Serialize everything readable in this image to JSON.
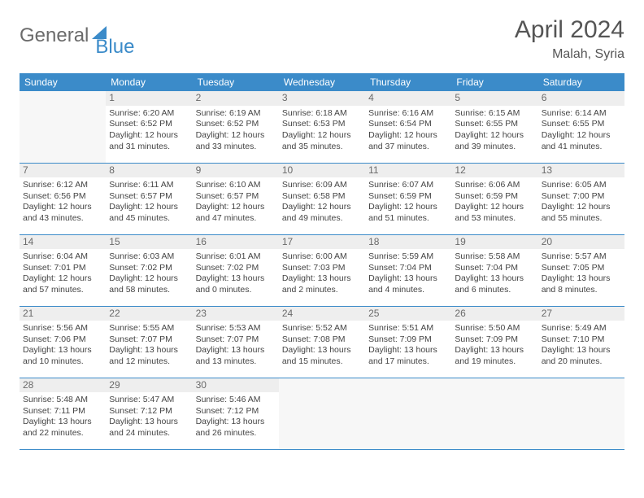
{
  "brand": {
    "word1": "General",
    "word2": "Blue"
  },
  "title": {
    "month": "April 2024",
    "location": "Malah, Syria"
  },
  "colors": {
    "header_bg": "#3b8bc9",
    "header_text": "#ffffff",
    "daynum_bg": "#eeeeee",
    "rule": "#3b8bc9",
    "body_text": "#444444"
  },
  "weekdays": [
    "Sunday",
    "Monday",
    "Tuesday",
    "Wednesday",
    "Thursday",
    "Friday",
    "Saturday"
  ],
  "weeks": [
    [
      null,
      {
        "n": "1",
        "sr": "6:20 AM",
        "ss": "6:52 PM",
        "dl": "12 hours and 31 minutes."
      },
      {
        "n": "2",
        "sr": "6:19 AM",
        "ss": "6:52 PM",
        "dl": "12 hours and 33 minutes."
      },
      {
        "n": "3",
        "sr": "6:18 AM",
        "ss": "6:53 PM",
        "dl": "12 hours and 35 minutes."
      },
      {
        "n": "4",
        "sr": "6:16 AM",
        "ss": "6:54 PM",
        "dl": "12 hours and 37 minutes."
      },
      {
        "n": "5",
        "sr": "6:15 AM",
        "ss": "6:55 PM",
        "dl": "12 hours and 39 minutes."
      },
      {
        "n": "6",
        "sr": "6:14 AM",
        "ss": "6:55 PM",
        "dl": "12 hours and 41 minutes."
      }
    ],
    [
      {
        "n": "7",
        "sr": "6:12 AM",
        "ss": "6:56 PM",
        "dl": "12 hours and 43 minutes."
      },
      {
        "n": "8",
        "sr": "6:11 AM",
        "ss": "6:57 PM",
        "dl": "12 hours and 45 minutes."
      },
      {
        "n": "9",
        "sr": "6:10 AM",
        "ss": "6:57 PM",
        "dl": "12 hours and 47 minutes."
      },
      {
        "n": "10",
        "sr": "6:09 AM",
        "ss": "6:58 PM",
        "dl": "12 hours and 49 minutes."
      },
      {
        "n": "11",
        "sr": "6:07 AM",
        "ss": "6:59 PM",
        "dl": "12 hours and 51 minutes."
      },
      {
        "n": "12",
        "sr": "6:06 AM",
        "ss": "6:59 PM",
        "dl": "12 hours and 53 minutes."
      },
      {
        "n": "13",
        "sr": "6:05 AM",
        "ss": "7:00 PM",
        "dl": "12 hours and 55 minutes."
      }
    ],
    [
      {
        "n": "14",
        "sr": "6:04 AM",
        "ss": "7:01 PM",
        "dl": "12 hours and 57 minutes."
      },
      {
        "n": "15",
        "sr": "6:03 AM",
        "ss": "7:02 PM",
        "dl": "12 hours and 58 minutes."
      },
      {
        "n": "16",
        "sr": "6:01 AM",
        "ss": "7:02 PM",
        "dl": "13 hours and 0 minutes."
      },
      {
        "n": "17",
        "sr": "6:00 AM",
        "ss": "7:03 PM",
        "dl": "13 hours and 2 minutes."
      },
      {
        "n": "18",
        "sr": "5:59 AM",
        "ss": "7:04 PM",
        "dl": "13 hours and 4 minutes."
      },
      {
        "n": "19",
        "sr": "5:58 AM",
        "ss": "7:04 PM",
        "dl": "13 hours and 6 minutes."
      },
      {
        "n": "20",
        "sr": "5:57 AM",
        "ss": "7:05 PM",
        "dl": "13 hours and 8 minutes."
      }
    ],
    [
      {
        "n": "21",
        "sr": "5:56 AM",
        "ss": "7:06 PM",
        "dl": "13 hours and 10 minutes."
      },
      {
        "n": "22",
        "sr": "5:55 AM",
        "ss": "7:07 PM",
        "dl": "13 hours and 12 minutes."
      },
      {
        "n": "23",
        "sr": "5:53 AM",
        "ss": "7:07 PM",
        "dl": "13 hours and 13 minutes."
      },
      {
        "n": "24",
        "sr": "5:52 AM",
        "ss": "7:08 PM",
        "dl": "13 hours and 15 minutes."
      },
      {
        "n": "25",
        "sr": "5:51 AM",
        "ss": "7:09 PM",
        "dl": "13 hours and 17 minutes."
      },
      {
        "n": "26",
        "sr": "5:50 AM",
        "ss": "7:09 PM",
        "dl": "13 hours and 19 minutes."
      },
      {
        "n": "27",
        "sr": "5:49 AM",
        "ss": "7:10 PM",
        "dl": "13 hours and 20 minutes."
      }
    ],
    [
      {
        "n": "28",
        "sr": "5:48 AM",
        "ss": "7:11 PM",
        "dl": "13 hours and 22 minutes."
      },
      {
        "n": "29",
        "sr": "5:47 AM",
        "ss": "7:12 PM",
        "dl": "13 hours and 24 minutes."
      },
      {
        "n": "30",
        "sr": "5:46 AM",
        "ss": "7:12 PM",
        "dl": "13 hours and 26 minutes."
      },
      null,
      null,
      null,
      null
    ]
  ],
  "labels": {
    "sunrise": "Sunrise:",
    "sunset": "Sunset:",
    "daylight": "Daylight:"
  }
}
